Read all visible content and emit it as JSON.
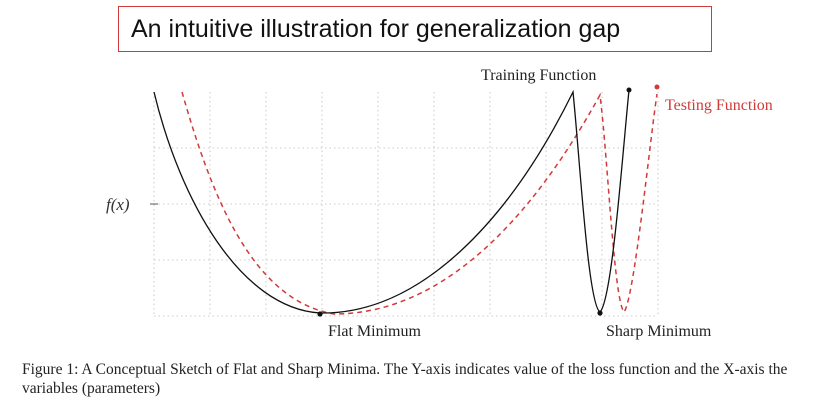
{
  "title": "An intuitive illustration for generalization gap",
  "figure": {
    "y_axis_label": "f(x)",
    "training_label": "Training Function",
    "testing_label": "Testing Function",
    "flat_label": "Flat Minimum",
    "sharp_label": "Sharp Minimum",
    "caption": "Figure 1: A Conceptual Sketch of Flat and Sharp Minima. The Y-axis indicates value of the loss function and the X-axis the variables (parameters)",
    "colors": {
      "training": "#111111",
      "testing": "#d23a3a",
      "grid": "#bdbdbd",
      "title_border": "#d23a3a"
    }
  }
}
